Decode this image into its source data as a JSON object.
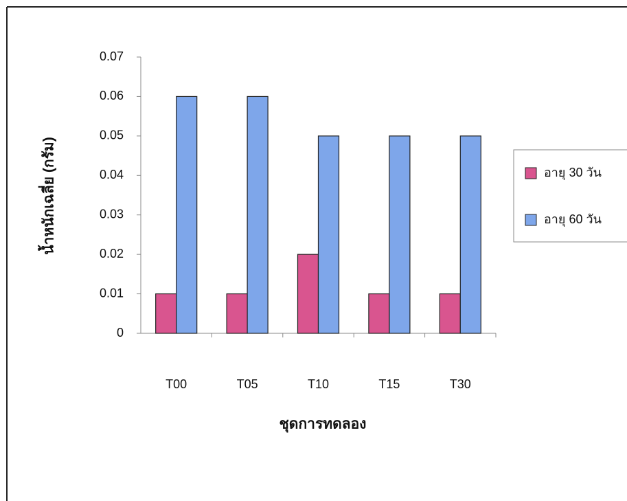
{
  "chart_data": {
    "type": "bar",
    "y_label": "น้ำหนักเฉลี่ย (กรัม)",
    "x_label": "ชุดการทดลอง",
    "categories": [
      "T00",
      "T05",
      "T10",
      "T15",
      "T30"
    ],
    "series": [
      {
        "name": "อายุ 30 วัน",
        "color": "#d9558f",
        "values": [
          0.01,
          0.01,
          0.02,
          0.01,
          0.01
        ]
      },
      {
        "name": "อายุ 60 วัน",
        "color": "#7ea6ea",
        "values": [
          0.06,
          0.06,
          0.05,
          0.05,
          0.05
        ]
      }
    ],
    "ylim": [
      0,
      0.07
    ],
    "yticks": [
      0,
      0.01,
      0.02,
      0.03,
      0.04,
      0.05,
      0.06,
      0.07
    ],
    "grid": false,
    "legend": "right"
  }
}
